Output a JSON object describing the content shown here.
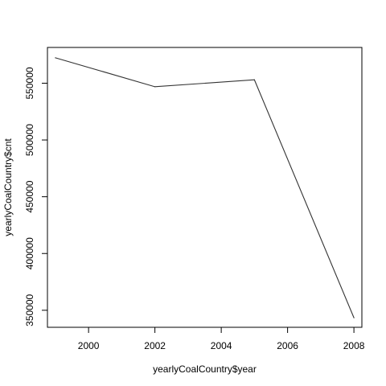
{
  "chart_data": {
    "type": "line",
    "title": "",
    "xlabel": "yearlyCoalCountry$year",
    "ylabel": "yearlyCoalCountry$cnt",
    "xlim": [
      1998.76,
      2008.24
    ],
    "ylim": [
      335000,
      581500
    ],
    "x_ticks": [
      2000,
      2002,
      2004,
      2006,
      2008
    ],
    "y_ticks": [
      350000,
      400000,
      450000,
      500000,
      550000
    ],
    "x_tick_labels": [
      "2000",
      "2002",
      "2004",
      "2006",
      "2008"
    ],
    "y_tick_labels": [
      "350000",
      "400000",
      "450000",
      "500000",
      "550000"
    ],
    "grid": false,
    "series": [
      {
        "x": [
          1999,
          2002,
          2005,
          2008
        ],
        "y": [
          572400,
          546900,
          553000,
          343400
        ],
        "color": "#333333"
      }
    ]
  }
}
